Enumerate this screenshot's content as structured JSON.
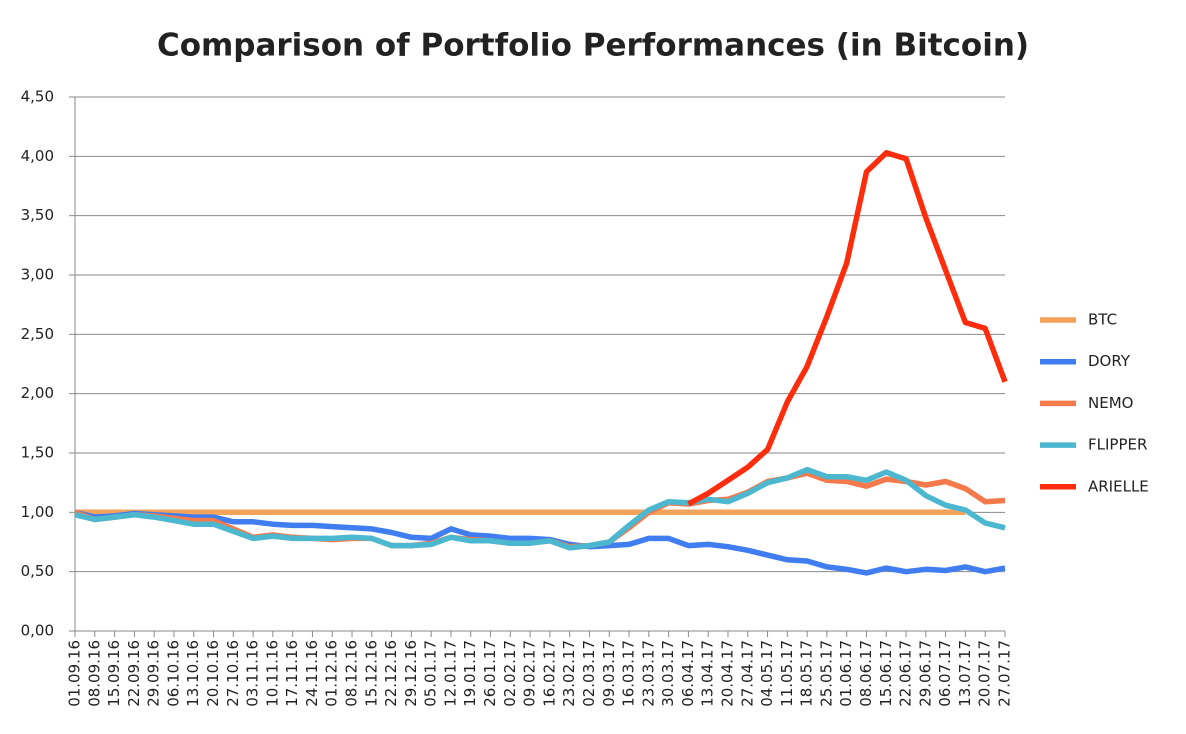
{
  "chart_data": {
    "type": "line",
    "title": "Comparison of Portfolio Performances (in Bitcoin)",
    "categories": [
      "01.09.16",
      "08.09.16",
      "15.09.16",
      "22.09.16",
      "29.09.16",
      "06.10.16",
      "13.10.16",
      "20.10.16",
      "27.10.16",
      "03.11.16",
      "10.11.16",
      "17.11.16",
      "24.11.16",
      "01.12.16",
      "08.12.16",
      "15.12.16",
      "22.12.16",
      "29.12.16",
      "05.01.17",
      "12.01.17",
      "19.01.17",
      "26.01.17",
      "02.02.17",
      "09.02.17",
      "16.02.17",
      "23.02.17",
      "02.03.17",
      "09.03.17",
      "16.03.17",
      "23.03.17",
      "30.03.17",
      "06.04.17",
      "13.04.17",
      "20.04.17",
      "27.04.17",
      "04.05.17",
      "11.05.17",
      "18.05.17",
      "25.05.17",
      "01.06.17",
      "08.06.17",
      "15.06.17",
      "22.06.17",
      "29.06.17",
      "06.07.17",
      "13.07.17",
      "20.07.17",
      "27.07.17"
    ],
    "series": [
      {
        "name": "BTC",
        "color": "#f5a35a",
        "values": [
          1,
          1,
          1,
          1,
          1,
          1,
          1,
          1,
          1,
          1,
          1,
          1,
          1,
          1,
          1,
          1,
          1,
          1,
          1,
          1,
          1,
          1,
          1,
          1,
          1,
          1,
          1,
          1,
          1,
          1,
          1,
          1,
          1,
          1,
          1,
          1,
          1,
          1,
          1,
          1,
          1,
          1,
          1,
          1,
          1,
          1,
          null,
          null
        ]
      },
      {
        "name": "DORY",
        "color": "#3f7df0",
        "values": [
          1.0,
          0.96,
          0.97,
          0.99,
          0.98,
          0.97,
          0.96,
          0.96,
          0.92,
          0.92,
          0.9,
          0.89,
          0.89,
          0.88,
          0.87,
          0.86,
          0.83,
          0.79,
          0.78,
          0.86,
          0.81,
          0.8,
          0.78,
          0.78,
          0.77,
          0.73,
          0.71,
          0.72,
          0.73,
          0.78,
          0.78,
          0.72,
          0.73,
          0.71,
          0.68,
          0.64,
          0.6,
          0.59,
          0.54,
          0.52,
          0.49,
          0.53,
          0.5,
          0.52,
          0.51,
          0.54,
          0.5,
          0.53
        ]
      },
      {
        "name": "NEMO",
        "color": "#f47a4c",
        "values": [
          1.0,
          0.94,
          0.96,
          0.98,
          0.97,
          0.95,
          0.93,
          0.93,
          0.86,
          0.79,
          0.81,
          0.79,
          0.78,
          0.77,
          0.78,
          0.78,
          0.72,
          0.72,
          0.74,
          0.79,
          0.77,
          0.76,
          0.74,
          0.74,
          0.76,
          0.71,
          0.72,
          0.75,
          0.87,
          1.0,
          1.08,
          1.07,
          1.1,
          1.11,
          1.17,
          1.26,
          1.29,
          1.33,
          1.27,
          1.26,
          1.22,
          1.28,
          1.26,
          1.23,
          1.26,
          1.2,
          1.09,
          1.1
        ]
      },
      {
        "name": "FLIPPER",
        "color": "#4bb8d0",
        "values": [
          0.98,
          0.94,
          0.96,
          0.98,
          0.96,
          0.93,
          0.9,
          0.9,
          0.84,
          0.78,
          0.8,
          0.78,
          0.78,
          0.78,
          0.79,
          0.78,
          0.72,
          0.72,
          0.73,
          0.79,
          0.76,
          0.76,
          0.74,
          0.74,
          0.76,
          0.7,
          0.72,
          0.75,
          0.89,
          1.02,
          1.09,
          1.08,
          1.11,
          1.09,
          1.16,
          1.25,
          1.29,
          1.36,
          1.3,
          1.3,
          1.27,
          1.34,
          1.27,
          1.14,
          1.06,
          1.02,
          0.91,
          0.87
        ]
      },
      {
        "name": "ARIELLE",
        "color": "#ff2d0c",
        "values": [
          null,
          null,
          null,
          null,
          null,
          null,
          null,
          null,
          null,
          null,
          null,
          null,
          null,
          null,
          null,
          null,
          null,
          null,
          null,
          null,
          null,
          null,
          null,
          null,
          null,
          null,
          null,
          null,
          null,
          null,
          null,
          1.07,
          1.16,
          1.27,
          1.38,
          1.53,
          1.93,
          2.23,
          2.65,
          3.1,
          3.87,
          4.03,
          3.98,
          3.48,
          3.04,
          2.6,
          2.55,
          2.1
        ]
      }
    ],
    "ylim": [
      0,
      4.5
    ],
    "yticks": [
      {
        "value": 0,
        "label": "0,00"
      },
      {
        "value": 0.5,
        "label": "0,50"
      },
      {
        "value": 1,
        "label": "1,00"
      },
      {
        "value": 1.5,
        "label": "1,50"
      },
      {
        "value": 2,
        "label": "2,00"
      },
      {
        "value": 2.5,
        "label": "2,50"
      },
      {
        "value": 3,
        "label": "3,00"
      },
      {
        "value": 3.5,
        "label": "3,50"
      },
      {
        "value": 4,
        "label": "4,00"
      },
      {
        "value": 4.5,
        "label": "4,50"
      }
    ],
    "grid": true,
    "legend": "right"
  }
}
